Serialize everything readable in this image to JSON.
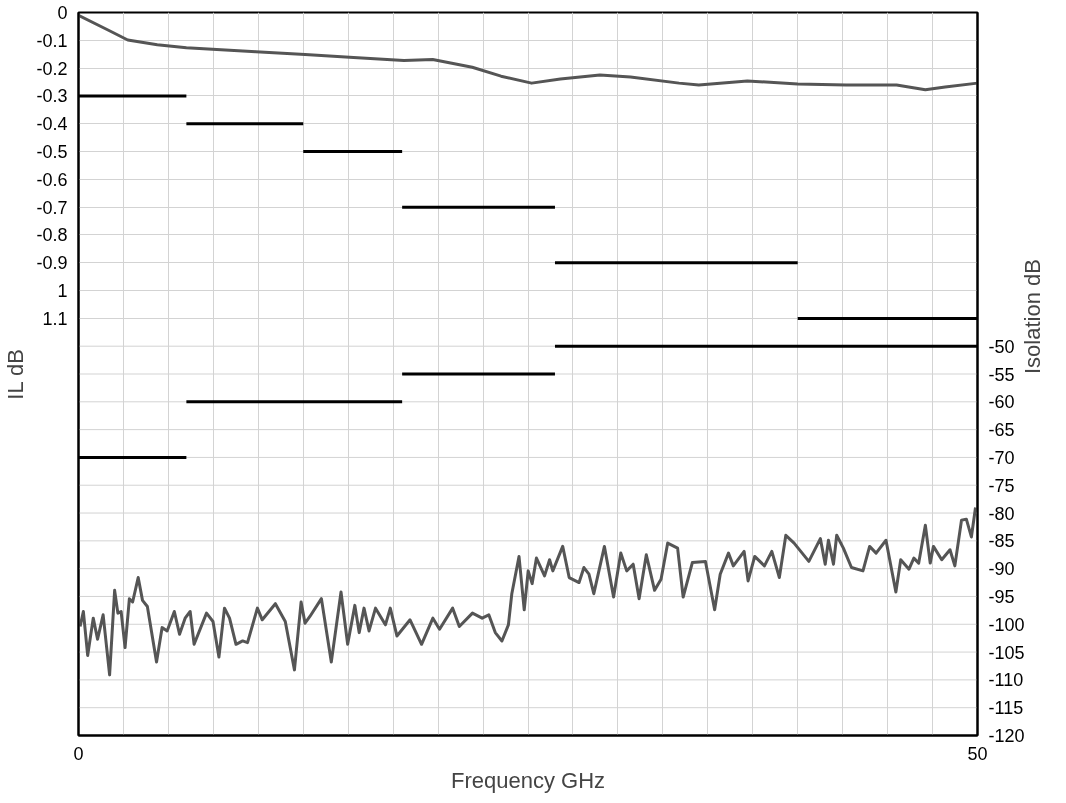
{
  "chart_data": {
    "type": "line",
    "xlabel": "Frequency GHz",
    "ylabel": "IL dB",
    "y2label": "Isolation dB",
    "xlim": [
      0,
      50
    ],
    "xticks": [
      0,
      {
        "value": 2.5,
        "label": null
      },
      {
        "value": 5,
        "label": null
      },
      {
        "value": 7.5,
        "label": null
      },
      {
        "value": 10,
        "label": null
      },
      {
        "value": 12.5,
        "label": null
      },
      {
        "value": 15,
        "label": null
      },
      {
        "value": 17.5,
        "label": null
      },
      {
        "value": 20,
        "label": null
      },
      {
        "value": 22.5,
        "label": null
      },
      {
        "value": 25,
        "label": null
      },
      {
        "value": 27.5,
        "label": null
      },
      {
        "value": 30,
        "label": null
      },
      {
        "value": 32.5,
        "label": null
      },
      {
        "value": 35,
        "label": null
      },
      {
        "value": 37.5,
        "label": null
      },
      {
        "value": 40,
        "label": null
      },
      {
        "value": 42.5,
        "label": null
      },
      {
        "value": 45,
        "label": null
      },
      {
        "value": 47.5,
        "label": null
      },
      50
    ],
    "ylim": [
      -2.6,
      0
    ],
    "yticks": [
      0,
      -0.1,
      -0.2,
      -0.3,
      -0.4,
      -0.5,
      -0.6,
      -0.7,
      -0.8,
      -0.9,
      {
        "value": -1,
        "label": "1"
      },
      {
        "value": -1.1,
        "label": "1.1"
      }
    ],
    "y2lim": [
      -120,
      10
    ],
    "y2ticks": [
      -50,
      -55,
      -60,
      -65,
      -70,
      -75,
      -80,
      -85,
      -90,
      -95,
      -100,
      -105,
      -110,
      -115,
      -120
    ],
    "grid": true,
    "line_style": "solid",
    "marker": "none",
    "series": [
      {
        "color": "#555555",
        "x": [
          0,
          1.64,
          2.74,
          4.38,
          6.0,
          9.86,
          12.6,
          15.3,
          18.1,
          19.7,
          21.9,
          23.5,
          25.2,
          26.8,
          29.0,
          30.7,
          33.4,
          34.5,
          37.2,
          40.0,
          42.7,
          45.5,
          47.1,
          48.2,
          50
        ],
        "values": [
          -0.01,
          -0.063,
          -0.099,
          -0.116,
          -0.127,
          -0.141,
          -0.151,
          -0.162,
          -0.173,
          -0.169,
          -0.197,
          -0.229,
          -0.254,
          -0.239,
          -0.225,
          -0.232,
          -0.254,
          -0.261,
          -0.246,
          -0.257,
          -0.261,
          -0.261,
          -0.278,
          -0.268,
          -0.254
        ]
      },
      {
        "color": "#555555",
        "axis": "y2",
        "x": [
          0.09,
          0.27,
          0.51,
          0.82,
          1.06,
          1.37,
          1.73,
          2.01,
          2.19,
          2.37,
          2.59,
          2.83,
          3.01,
          3.32,
          3.56,
          3.83,
          4.34,
          4.65,
          4.93,
          5.33,
          5.62,
          5.93,
          6.21,
          6.43,
          7.12,
          7.48,
          7.81,
          8.12,
          8.4,
          8.76,
          9.13,
          9.4,
          9.95,
          10.22,
          10.95,
          11.5,
          12.01,
          12.38,
          12.6,
          12.87,
          13.51,
          14.06,
          14.6,
          14.97,
          15.37,
          15.61,
          15.88,
          16.16,
          16.52,
          17.07,
          17.34,
          17.71,
          18.44,
          19.08,
          19.71,
          20.08,
          20.81,
          21.18,
          21.91,
          22.45,
          22.82,
          23.18,
          23.55,
          23.91,
          24.1,
          24.5,
          24.79,
          25.01,
          25.23,
          25.47,
          25.92,
          26.2,
          26.38,
          26.93,
          27.29,
          27.84,
          28.11,
          28.39,
          28.66,
          29.25,
          29.76,
          30.16,
          30.49,
          30.85,
          31.18,
          31.58,
          32.04,
          32.4,
          32.77,
          33.32,
          33.63,
          34.14,
          34.87,
          35.38,
          35.69,
          36.15,
          36.42,
          37.02,
          37.24,
          37.61,
          38.15,
          38.56,
          38.98,
          39.34,
          39.8,
          40.62,
          41.26,
          41.53,
          41.71,
          41.99,
          42.17,
          42.54,
          42.99,
          43.63,
          44.0,
          44.36,
          44.91,
          45.46,
          45.73,
          46.19,
          46.46,
          46.73,
          47.1,
          47.37,
          47.55,
          48.01,
          48.47,
          48.74,
          49.11,
          49.38,
          49.66,
          49.89
        ],
        "values": [
          -100.4,
          -97.7,
          -105.6,
          -98.9,
          -102.7,
          -98.3,
          -109.1,
          -93.9,
          -98.0,
          -97.7,
          -104.2,
          -95.4,
          -96.0,
          -91.6,
          -95.7,
          -96.8,
          -106.8,
          -100.6,
          -101.2,
          -97.7,
          -101.8,
          -98.9,
          -97.7,
          -103.6,
          -98.0,
          -99.5,
          -105.9,
          -97.1,
          -98.9,
          -103.6,
          -103.0,
          -103.3,
          -97.1,
          -99.2,
          -96.3,
          -99.5,
          -108.2,
          -96.0,
          -99.8,
          -98.6,
          -95.4,
          -106.8,
          -94.2,
          -103.6,
          -96.6,
          -101.5,
          -97.1,
          -101.2,
          -97.1,
          -100.1,
          -97.1,
          -102.1,
          -99.2,
          -103.6,
          -98.9,
          -100.9,
          -97.1,
          -100.4,
          -98.0,
          -98.9,
          -98.3,
          -101.5,
          -103.0,
          -100.1,
          -94.5,
          -87.8,
          -97.4,
          -90.4,
          -92.7,
          -88.1,
          -91.3,
          -88.4,
          -90.4,
          -86.0,
          -91.6,
          -92.5,
          -89.8,
          -91.0,
          -94.5,
          -86.0,
          -95.1,
          -87.2,
          -90.4,
          -89.2,
          -95.4,
          -87.5,
          -93.9,
          -91.9,
          -85.4,
          -86.3,
          -95.1,
          -88.9,
          -88.7,
          -97.4,
          -91.0,
          -87.2,
          -89.5,
          -86.9,
          -92.2,
          -87.8,
          -89.5,
          -86.9,
          -91.6,
          -84.0,
          -85.4,
          -88.7,
          -84.6,
          -89.2,
          -84.9,
          -89.2,
          -84.0,
          -86.3,
          -89.8,
          -90.4,
          -86.0,
          -87.2,
          -84.9,
          -94.2,
          -88.4,
          -90.1,
          -88.1,
          -89.0,
          -82.2,
          -89.0,
          -86.0,
          -88.4,
          -86.6,
          -89.5,
          -81.3,
          -81.1,
          -84.3,
          -79.0
        ]
      },
      {
        "color": "#000000",
        "x": [
          0,
          6
        ],
        "values": [
          -0.3,
          -0.3
        ]
      },
      {
        "color": "#000000",
        "x": [
          6,
          12.5
        ],
        "values": [
          -0.4,
          -0.4
        ]
      },
      {
        "color": "#000000",
        "x": [
          12.5,
          18
        ],
        "values": [
          -0.5,
          -0.5
        ]
      },
      {
        "color": "#000000",
        "x": [
          18,
          26.5
        ],
        "values": [
          -0.7,
          -0.7
        ]
      },
      {
        "color": "#000000",
        "x": [
          26.5,
          40
        ],
        "values": [
          -0.9,
          -0.9
        ]
      },
      {
        "color": "#000000",
        "x": [
          40,
          50
        ],
        "values": [
          -1.1,
          -1.1
        ]
      },
      {
        "color": "#000000",
        "axis": "y2",
        "x": [
          0,
          6
        ],
        "values": [
          -70,
          -70
        ]
      },
      {
        "color": "#000000",
        "axis": "y2",
        "x": [
          6,
          18
        ],
        "values": [
          -60,
          -60
        ]
      },
      {
        "color": "#000000",
        "axis": "y2",
        "x": [
          18,
          26.5
        ],
        "values": [
          -55,
          -55
        ]
      },
      {
        "color": "#000000",
        "axis": "y2",
        "x": [
          26.5,
          50
        ],
        "values": [
          -50,
          -50
        ]
      }
    ]
  }
}
